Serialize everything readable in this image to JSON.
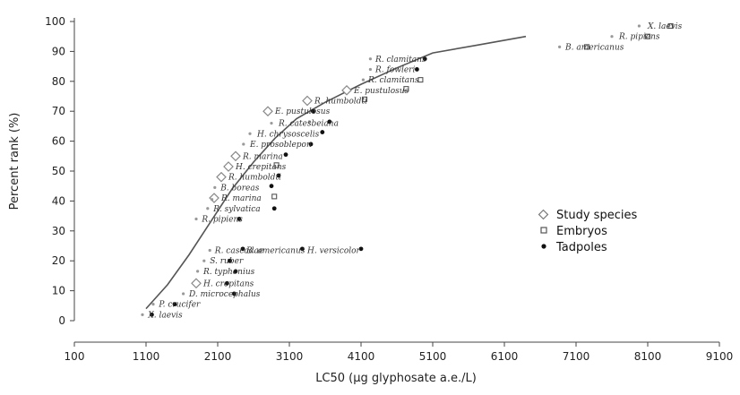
{
  "chart_data": {
    "type": "scatter",
    "xlabel": "LC50 (µg glyphosate a.e./L)",
    "ylabel": "Percent rank (%)",
    "xlim": [
      100,
      9100
    ],
    "ylim": [
      0,
      100
    ],
    "x_ticks": [
      100,
      1100,
      2100,
      3100,
      4100,
      5100,
      6100,
      7100,
      8100,
      9100
    ],
    "x_tick_labels": [
      "100",
      "1100",
      "2100",
      "3100",
      "4100",
      "5100",
      "6100",
      "7100",
      "8100",
      "9100"
    ],
    "y_ticks": [
      0,
      10,
      20,
      30,
      40,
      50,
      60,
      70,
      80,
      90,
      100
    ],
    "y_tick_labels": [
      "0",
      "10",
      "20",
      "30",
      "40",
      "50",
      "60",
      "70",
      "80",
      "90",
      "100"
    ],
    "legend_position": "right",
    "legend": [
      {
        "name": "Study species",
        "marker": "diamond"
      },
      {
        "name": "Embryos",
        "marker": "square"
      },
      {
        "name": "Tadpoles",
        "marker": "dot"
      }
    ],
    "series": [
      {
        "name": "Study species",
        "marker": "diamond",
        "points": [
          {
            "x": 3350,
            "y": 73.5
          },
          {
            "x": 3900,
            "y": 77
          },
          {
            "x": 2800,
            "y": 70
          },
          {
            "x": 2350,
            "y": 55
          },
          {
            "x": 2250,
            "y": 51.5
          },
          {
            "x": 2150,
            "y": 48
          },
          {
            "x": 2050,
            "y": 41
          },
          {
            "x": 1800,
            "y": 12.5
          }
        ]
      },
      {
        "name": "Embryos",
        "marker": "square",
        "points": [
          {
            "x": 8420,
            "y": 98.5
          },
          {
            "x": 8100,
            "y": 95
          },
          {
            "x": 7250,
            "y": 91.5
          },
          {
            "x": 4930,
            "y": 80.5
          },
          {
            "x": 4730,
            "y": 77.5
          },
          {
            "x": 4150,
            "y": 74
          },
          {
            "x": 2920,
            "y": 52
          },
          {
            "x": 2890,
            "y": 41.5
          }
        ]
      },
      {
        "name": "Tadpoles",
        "marker": "dot",
        "points": [
          {
            "x": 4990,
            "y": 87.5
          },
          {
            "x": 4880,
            "y": 84
          },
          {
            "x": 3430,
            "y": 70
          },
          {
            "x": 3660,
            "y": 66.5
          },
          {
            "x": 3560,
            "y": 63
          },
          {
            "x": 3400,
            "y": 59
          },
          {
            "x": 3050,
            "y": 55.5
          },
          {
            "x": 2950,
            "y": 48.5
          },
          {
            "x": 2850,
            "y": 45
          },
          {
            "x": 2890,
            "y": 37.5
          },
          {
            "x": 2400,
            "y": 34
          },
          {
            "x": 2450,
            "y": 24
          },
          {
            "x": 3280,
            "y": 24
          },
          {
            "x": 4100,
            "y": 24
          },
          {
            "x": 2270,
            "y": 20
          },
          {
            "x": 2350,
            "y": 16.5
          },
          {
            "x": 2230,
            "y": 12.5
          },
          {
            "x": 2330,
            "y": 9
          },
          {
            "x": 1500,
            "y": 5.5
          },
          {
            "x": 1180,
            "y": 2
          }
        ]
      },
      {
        "name": "",
        "marker": "small-dot",
        "points": [
          {
            "x": 7980,
            "y": 98.5
          },
          {
            "x": 7600,
            "y": 95
          },
          {
            "x": 6870,
            "y": 91.5
          },
          {
            "x": 4230,
            "y": 87.5
          },
          {
            "x": 4230,
            "y": 84
          },
          {
            "x": 4130,
            "y": 80.5
          },
          {
            "x": 3380,
            "y": 66.5
          },
          {
            "x": 2850,
            "y": 66
          },
          {
            "x": 2550,
            "y": 62.5
          },
          {
            "x": 2460,
            "y": 59
          },
          {
            "x": 2060,
            "y": 44.5
          },
          {
            "x": 1960,
            "y": 37.5
          },
          {
            "x": 1800,
            "y": 34
          },
          {
            "x": 2020,
            "y": 40.5
          },
          {
            "x": 1990,
            "y": 23.5
          },
          {
            "x": 1910,
            "y": 20
          },
          {
            "x": 1820,
            "y": 16.5
          },
          {
            "x": 1620,
            "y": 9
          },
          {
            "x": 1200,
            "y": 5.5
          },
          {
            "x": 1050,
            "y": 2
          }
        ]
      }
    ],
    "fit_curve": [
      {
        "x": 1100,
        "y": 4
      },
      {
        "x": 1400,
        "y": 12
      },
      {
        "x": 1700,
        "y": 22
      },
      {
        "x": 2000,
        "y": 33
      },
      {
        "x": 2300,
        "y": 44
      },
      {
        "x": 2600,
        "y": 53
      },
      {
        "x": 2900,
        "y": 61
      },
      {
        "x": 3200,
        "y": 67.5
      },
      {
        "x": 3600,
        "y": 73
      },
      {
        "x": 4100,
        "y": 79
      },
      {
        "x": 4600,
        "y": 84.5
      },
      {
        "x": 5100,
        "y": 89.5
      },
      {
        "x": 5700,
        "y": 92
      },
      {
        "x": 6400,
        "y": 95
      }
    ],
    "annotations": [
      {
        "text": "X. laevis",
        "x": 8100,
        "y": 98.5,
        "anchor": "start"
      },
      {
        "text": "R. pipiens",
        "x": 7700,
        "y": 95,
        "anchor": "start"
      },
      {
        "text": "B. americanus",
        "x": 6950,
        "y": 91.5,
        "anchor": "start"
      },
      {
        "text": "R. clamitans",
        "x": 4300,
        "y": 87.5,
        "anchor": "start"
      },
      {
        "text": "R. fowleri",
        "x": 4300,
        "y": 84,
        "anchor": "start"
      },
      {
        "text": "R. clamitans",
        "x": 4200,
        "y": 80.5,
        "anchor": "start"
      },
      {
        "text": "E. pustulosus",
        "x": 4000,
        "y": 77,
        "anchor": "start"
      },
      {
        "text": "R. humboldti",
        "x": 3450,
        "y": 73.5,
        "anchor": "start"
      },
      {
        "text": "E. pustulosus",
        "x": 2900,
        "y": 70,
        "anchor": "start"
      },
      {
        "text": "R. catesbeiana",
        "x": 2950,
        "y": 66,
        "anchor": "start"
      },
      {
        "text": "H. chrysoscelis",
        "x": 2650,
        "y": 62.5,
        "anchor": "start"
      },
      {
        "text": "E. prosoblepon",
        "x": 2550,
        "y": 59,
        "anchor": "start"
      },
      {
        "text": "R. marina",
        "x": 2450,
        "y": 55,
        "anchor": "start"
      },
      {
        "text": "H. crepitans",
        "x": 2350,
        "y": 51.5,
        "anchor": "start"
      },
      {
        "text": "R. humboldti",
        "x": 2250,
        "y": 48,
        "anchor": "start"
      },
      {
        "text": "B. boreas",
        "x": 2140,
        "y": 44.5,
        "anchor": "start"
      },
      {
        "text": "R. marina",
        "x": 2150,
        "y": 41,
        "anchor": "start"
      },
      {
        "text": "R. sylvatica",
        "x": 2040,
        "y": 37.5,
        "anchor": "start"
      },
      {
        "text": "R. pipiens",
        "x": 1880,
        "y": 34,
        "anchor": "start"
      },
      {
        "text": "R. cascadae",
        "x": 2060,
        "y": 23.5,
        "anchor": "start"
      },
      {
        "text": "B. americanus",
        "x": 2500,
        "y": 23.5,
        "anchor": "start"
      },
      {
        "text": "H. versicolor",
        "x": 3350,
        "y": 23.5,
        "anchor": "start"
      },
      {
        "text": "S. ruber",
        "x": 1990,
        "y": 20,
        "anchor": "start"
      },
      {
        "text": "R. typhonius",
        "x": 1900,
        "y": 16.5,
        "anchor": "start"
      },
      {
        "text": "H. crepitans",
        "x": 1900,
        "y": 12.5,
        "anchor": "start"
      },
      {
        "text": "D. microcephalus",
        "x": 1700,
        "y": 9,
        "anchor": "start"
      },
      {
        "text": "P. crucifer",
        "x": 1280,
        "y": 5.5,
        "anchor": "start"
      },
      {
        "text": "X. laevis",
        "x": 1130,
        "y": 2,
        "anchor": "start"
      }
    ]
  }
}
